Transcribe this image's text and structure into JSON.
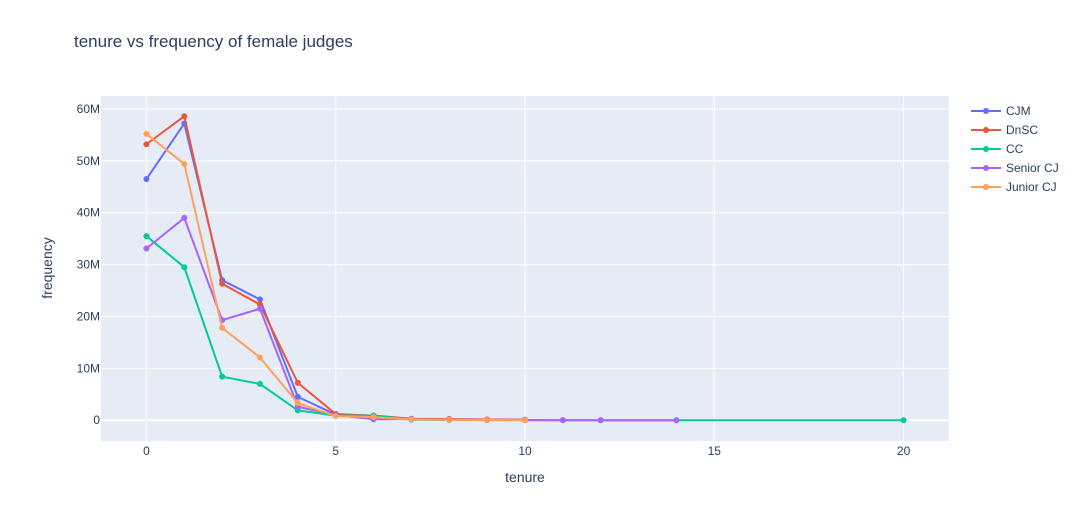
{
  "chart_data": {
    "type": "line",
    "title": "tenure vs frequency of female judges",
    "xlabel": "tenure",
    "ylabel": "frequency",
    "xlim": [
      -1.2,
      21.2
    ],
    "ylim": [
      -4000000,
      62500000
    ],
    "x_ticks": [
      0,
      5,
      10,
      15,
      20
    ],
    "x_tick_labels": [
      "0",
      "5",
      "10",
      "15",
      "20"
    ],
    "y_ticks": [
      0,
      10000000,
      20000000,
      30000000,
      40000000,
      50000000,
      60000000
    ],
    "y_tick_labels": [
      "0",
      "10M",
      "20M",
      "30M",
      "40M",
      "50M",
      "60M"
    ],
    "grid": true,
    "legend_position": "right",
    "series": [
      {
        "name": "CJM",
        "color": "#636efa",
        "x": [
          0,
          1,
          2,
          3,
          4,
          5,
          6,
          7,
          8,
          9,
          10
        ],
        "y": [
          46500000,
          57200000,
          27000000,
          23300000,
          4500000,
          1100000,
          700000,
          250000,
          200000,
          150000,
          100000
        ]
      },
      {
        "name": "DnSC",
        "color": "#ef553b",
        "x": [
          0,
          1,
          2,
          3,
          4,
          5,
          6,
          7,
          8,
          9,
          10
        ],
        "y": [
          53200000,
          58600000,
          26300000,
          22300000,
          7200000,
          1200000,
          900000,
          300000,
          250000,
          150000,
          100000
        ]
      },
      {
        "name": "CC",
        "color": "#00cc96",
        "x": [
          0,
          1,
          2,
          3,
          4,
          5,
          6,
          7,
          8,
          9,
          10,
          11,
          12,
          14,
          20
        ],
        "y": [
          35500000,
          29500000,
          8400000,
          7000000,
          1900000,
          900000,
          900000,
          100000,
          50000,
          30000,
          20000,
          10000,
          10000,
          5000,
          0
        ]
      },
      {
        "name": "Senior CJ",
        "color": "#ab63fa",
        "x": [
          0,
          1,
          2,
          3,
          4,
          5,
          6,
          7,
          8,
          9,
          10,
          11,
          12,
          14
        ],
        "y": [
          33100000,
          39000000,
          19300000,
          21500000,
          2600000,
          1000000,
          200000,
          200000,
          100000,
          50000,
          30000,
          20000,
          10000,
          10000
        ]
      },
      {
        "name": "Junior CJ",
        "color": "#ffa15a",
        "x": [
          0,
          1,
          2,
          3,
          4,
          5,
          6,
          7,
          8,
          9,
          10
        ],
        "y": [
          55200000,
          49400000,
          17800000,
          12100000,
          3300000,
          800000,
          600000,
          150000,
          100000,
          50000,
          20000
        ]
      }
    ]
  }
}
